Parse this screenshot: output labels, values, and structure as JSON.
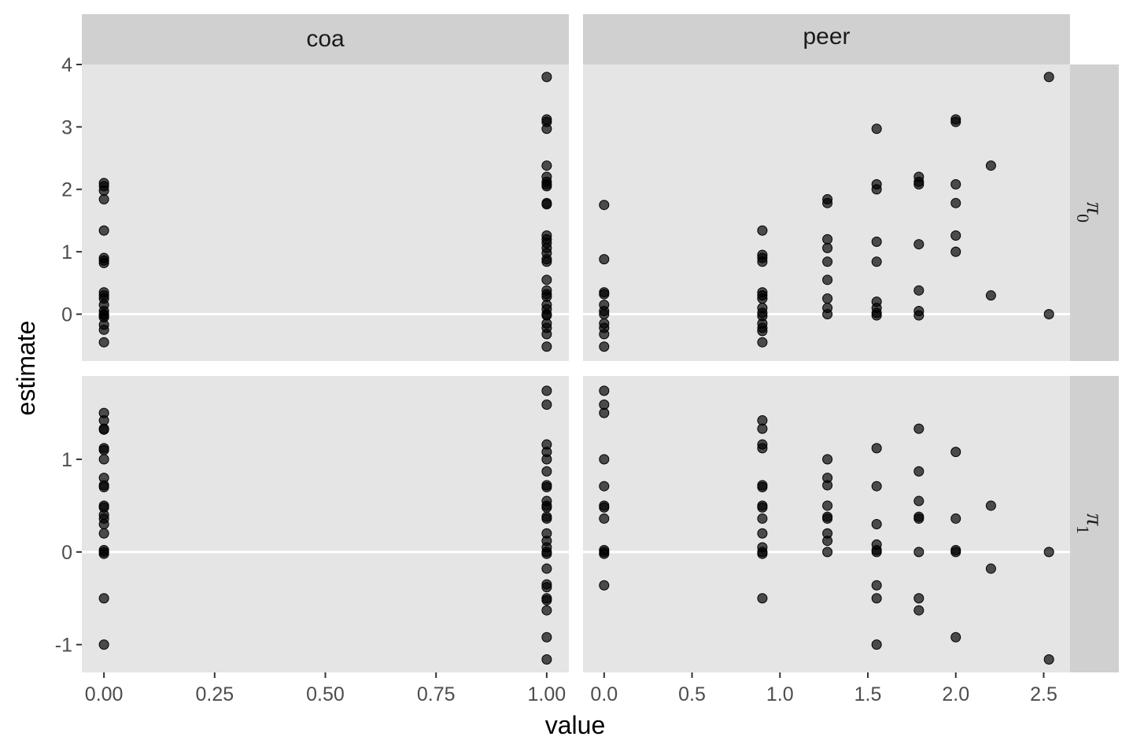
{
  "chart_data": {
    "type": "scatter",
    "facets": {
      "columns": [
        "coa",
        "peer"
      ],
      "rows": [
        "π",
        "π"
      ],
      "row_subscripts": [
        "0",
        "1"
      ]
    },
    "xlabel": "value",
    "ylabel": "estimate",
    "x_ticks": {
      "coa": [
        "0.00",
        "0.25",
        "0.50",
        "0.75",
        "1.00"
      ],
      "peer": [
        "0.0",
        "0.5",
        "1.0",
        "1.5",
        "2.0",
        "2.5"
      ]
    },
    "x_tick_values": {
      "coa": [
        0,
        0.25,
        0.5,
        0.75,
        1.0
      ],
      "peer": [
        0,
        0.5,
        1.0,
        1.5,
        2.0,
        2.5
      ]
    },
    "xlim": {
      "coa": [
        -0.05,
        1.05
      ],
      "peer": [
        -0.12,
        2.65
      ]
    },
    "y_ticks": {
      "pi0": [
        "4",
        "3",
        "2",
        "1",
        "0"
      ],
      "pi1": [
        "1",
        "0",
        "-1"
      ]
    },
    "y_tick_values": {
      "pi0": [
        4,
        3,
        2,
        1,
        0
      ],
      "pi1": [
        1,
        0,
        -1
      ]
    },
    "ylim": {
      "pi0": [
        -0.75,
        4.0
      ],
      "pi1": [
        -1.3,
        1.9
      ]
    },
    "zero_line": true,
    "colors": {
      "panel": "#e5e5e5",
      "strip": "#d0d0d0",
      "point": "#000000",
      "zero_line": "#ffffff"
    },
    "panels": [
      {
        "col": "coa",
        "row": "pi0",
        "points": [
          [
            0,
            2.1
          ],
          [
            0,
            2.05
          ],
          [
            0,
            1.98
          ],
          [
            0,
            1.84
          ],
          [
            0,
            1.34
          ],
          [
            0,
            0.9
          ],
          [
            0,
            0.86
          ],
          [
            0,
            0.82
          ],
          [
            0,
            0.35
          ],
          [
            0,
            0.3
          ],
          [
            0,
            0.25
          ],
          [
            0,
            0.15
          ],
          [
            0,
            0.05
          ],
          [
            0,
            0.0
          ],
          [
            0,
            -0.02
          ],
          [
            0,
            -0.05
          ],
          [
            0,
            -0.17
          ],
          [
            0,
            -0.25
          ],
          [
            0,
            -0.45
          ],
          [
            1,
            3.8
          ],
          [
            1,
            3.12
          ],
          [
            1,
            3.08
          ],
          [
            1,
            2.97
          ],
          [
            1,
            2.38
          ],
          [
            1,
            2.2
          ],
          [
            1,
            2.12
          ],
          [
            1,
            2.08
          ],
          [
            1,
            2.05
          ],
          [
            1,
            1.78
          ],
          [
            1,
            1.76
          ],
          [
            1,
            1.26
          ],
          [
            1,
            1.2
          ],
          [
            1,
            1.14
          ],
          [
            1,
            1.06
          ],
          [
            1,
            0.98
          ],
          [
            1,
            0.88
          ],
          [
            1,
            0.84
          ],
          [
            1,
            0.55
          ],
          [
            1,
            0.38
          ],
          [
            1,
            0.32
          ],
          [
            1,
            0.28
          ],
          [
            1,
            0.15
          ],
          [
            1,
            0.08
          ],
          [
            1,
            0.0
          ],
          [
            1,
            -0.02
          ],
          [
            1,
            -0.15
          ],
          [
            1,
            -0.22
          ],
          [
            1,
            -0.32
          ],
          [
            1,
            -0.52
          ]
        ]
      },
      {
        "col": "peer",
        "row": "pi0",
        "points": [
          [
            0,
            1.75
          ],
          [
            0,
            0.88
          ],
          [
            0,
            0.35
          ],
          [
            0,
            0.32
          ],
          [
            0,
            0.15
          ],
          [
            0,
            0.05
          ],
          [
            0,
            0.0
          ],
          [
            0,
            -0.15
          ],
          [
            0,
            -0.22
          ],
          [
            0,
            -0.32
          ],
          [
            0,
            -0.52
          ],
          [
            0.9,
            1.34
          ],
          [
            0.9,
            0.95
          ],
          [
            0.9,
            0.9
          ],
          [
            0.9,
            0.84
          ],
          [
            0.9,
            0.35
          ],
          [
            0.9,
            0.3
          ],
          [
            0.9,
            0.25
          ],
          [
            0.9,
            0.1
          ],
          [
            0.9,
            0.02
          ],
          [
            0.9,
            -0.03
          ],
          [
            0.9,
            -0.15
          ],
          [
            0.9,
            -0.22
          ],
          [
            0.9,
            -0.27
          ],
          [
            0.9,
            -0.45
          ],
          [
            1.27,
            1.84
          ],
          [
            1.27,
            1.78
          ],
          [
            1.27,
            1.2
          ],
          [
            1.27,
            1.06
          ],
          [
            1.27,
            0.84
          ],
          [
            1.27,
            0.55
          ],
          [
            1.27,
            0.25
          ],
          [
            1.27,
            0.1
          ],
          [
            1.27,
            0.0
          ],
          [
            1.55,
            2.97
          ],
          [
            1.55,
            2.08
          ],
          [
            1.55,
            2.0
          ],
          [
            1.55,
            1.16
          ],
          [
            1.55,
            0.84
          ],
          [
            1.55,
            0.2
          ],
          [
            1.55,
            0.1
          ],
          [
            1.55,
            0.02
          ],
          [
            1.55,
            -0.02
          ],
          [
            1.79,
            2.2
          ],
          [
            1.79,
            2.12
          ],
          [
            1.79,
            2.08
          ],
          [
            1.79,
            1.12
          ],
          [
            1.79,
            0.38
          ],
          [
            1.79,
            0.05
          ],
          [
            1.79,
            -0.02
          ],
          [
            2.0,
            3.12
          ],
          [
            2.0,
            3.08
          ],
          [
            2.0,
            2.08
          ],
          [
            2.0,
            1.78
          ],
          [
            2.0,
            1.26
          ],
          [
            2.0,
            1.0
          ],
          [
            2.2,
            2.38
          ],
          [
            2.2,
            0.3
          ],
          [
            2.53,
            3.8
          ],
          [
            2.53,
            0.0
          ]
        ]
      },
      {
        "col": "coa",
        "row": "pi1",
        "points": [
          [
            0,
            1.5
          ],
          [
            0,
            1.42
          ],
          [
            0,
            1.33
          ],
          [
            0,
            1.32
          ],
          [
            0,
            1.12
          ],
          [
            0,
            1.1
          ],
          [
            0,
            1.0
          ],
          [
            0,
            0.8
          ],
          [
            0,
            0.72
          ],
          [
            0,
            0.7
          ],
          [
            0,
            0.5
          ],
          [
            0,
            0.48
          ],
          [
            0,
            0.4
          ],
          [
            0,
            0.36
          ],
          [
            0,
            0.3
          ],
          [
            0,
            0.2
          ],
          [
            0,
            0.02
          ],
          [
            0,
            0.0
          ],
          [
            0,
            -0.02
          ],
          [
            0,
            -0.5
          ],
          [
            0,
            -1.0
          ],
          [
            1,
            1.74
          ],
          [
            1,
            1.59
          ],
          [
            1,
            1.16
          ],
          [
            1,
            1.08
          ],
          [
            1,
            1.0
          ],
          [
            1,
            0.87
          ],
          [
            1,
            0.72
          ],
          [
            1,
            0.7
          ],
          [
            1,
            0.55
          ],
          [
            1,
            0.5
          ],
          [
            1,
            0.48
          ],
          [
            1,
            0.38
          ],
          [
            1,
            0.36
          ],
          [
            1,
            0.2
          ],
          [
            1,
            0.12
          ],
          [
            1,
            0.05
          ],
          [
            1,
            0.0
          ],
          [
            1,
            -0.02
          ],
          [
            1,
            -0.18
          ],
          [
            1,
            -0.35
          ],
          [
            1,
            -0.38
          ],
          [
            1,
            -0.5
          ],
          [
            1,
            -0.52
          ],
          [
            1,
            -0.63
          ],
          [
            1,
            -0.92
          ],
          [
            1,
            -1.16
          ]
        ]
      },
      {
        "col": "peer",
        "row": "pi1",
        "points": [
          [
            0,
            1.74
          ],
          [
            0,
            1.59
          ],
          [
            0,
            1.5
          ],
          [
            0,
            1.0
          ],
          [
            0,
            0.71
          ],
          [
            0,
            0.5
          ],
          [
            0,
            0.48
          ],
          [
            0,
            0.36
          ],
          [
            0,
            0.02
          ],
          [
            0,
            0.0
          ],
          [
            0,
            -0.02
          ],
          [
            0,
            -0.36
          ],
          [
            0.9,
            1.42
          ],
          [
            0.9,
            1.33
          ],
          [
            0.9,
            1.16
          ],
          [
            0.9,
            1.12
          ],
          [
            0.9,
            0.72
          ],
          [
            0.9,
            0.7
          ],
          [
            0.9,
            0.5
          ],
          [
            0.9,
            0.48
          ],
          [
            0.9,
            0.36
          ],
          [
            0.9,
            0.2
          ],
          [
            0.9,
            0.05
          ],
          [
            0.9,
            0.0
          ],
          [
            0.9,
            -0.02
          ],
          [
            0.9,
            -0.5
          ],
          [
            1.27,
            1.0
          ],
          [
            1.27,
            0.8
          ],
          [
            1.27,
            0.72
          ],
          [
            1.27,
            0.5
          ],
          [
            1.27,
            0.38
          ],
          [
            1.27,
            0.36
          ],
          [
            1.27,
            0.2
          ],
          [
            1.27,
            0.12
          ],
          [
            1.27,
            0.0
          ],
          [
            1.55,
            1.12
          ],
          [
            1.55,
            0.71
          ],
          [
            1.55,
            0.3
          ],
          [
            1.55,
            0.08
          ],
          [
            1.55,
            0.02
          ],
          [
            1.55,
            0.0
          ],
          [
            1.55,
            -0.36
          ],
          [
            1.55,
            -0.5
          ],
          [
            1.55,
            -1.0
          ],
          [
            1.79,
            1.33
          ],
          [
            1.79,
            0.87
          ],
          [
            1.79,
            0.55
          ],
          [
            1.79,
            0.38
          ],
          [
            1.79,
            0.36
          ],
          [
            1.79,
            0.0
          ],
          [
            1.79,
            -0.5
          ],
          [
            1.79,
            -0.63
          ],
          [
            2.0,
            1.08
          ],
          [
            2.0,
            0.36
          ],
          [
            2.0,
            0.02
          ],
          [
            2.0,
            0.0
          ],
          [
            2.0,
            -0.92
          ],
          [
            2.2,
            0.5
          ],
          [
            2.2,
            -0.18
          ],
          [
            2.53,
            0.0
          ],
          [
            2.53,
            -1.16
          ]
        ]
      }
    ]
  }
}
